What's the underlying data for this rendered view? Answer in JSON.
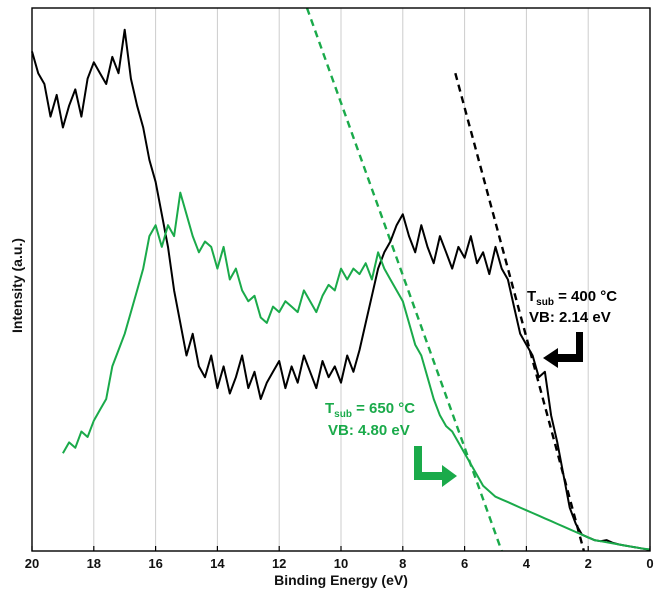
{
  "chart_data": {
    "type": "line",
    "title": "",
    "xlabel": "Binding Energy (eV)",
    "ylabel": "Intensity (a.u.)",
    "xlim": [
      20,
      0
    ],
    "xreversed": true,
    "ylim": [
      0,
      1
    ],
    "y_ticks_shown": false,
    "grid": "vertical",
    "x_ticks": [
      20,
      18,
      16,
      14,
      12,
      10,
      8,
      6,
      4,
      2,
      0
    ],
    "colors": {
      "black": "#000000",
      "green": "#1aaa4a",
      "grid": "#cccccc"
    },
    "series": [
      {
        "color": "#000000",
        "x": [
          20,
          19.8,
          19.6,
          19.4,
          19.2,
          19,
          18.8,
          18.6,
          18.4,
          18.2,
          18,
          17.8,
          17.6,
          17.4,
          17.2,
          17,
          16.8,
          16.6,
          16.4,
          16.2,
          16,
          15.8,
          15.6,
          15.4,
          15.2,
          15,
          14.8,
          14.6,
          14.4,
          14.2,
          14,
          13.8,
          13.6,
          13.4,
          13.2,
          13,
          12.8,
          12.6,
          12.4,
          12.2,
          12,
          11.8,
          11.6,
          11.4,
          11.2,
          11,
          10.8,
          10.6,
          10.4,
          10.2,
          10,
          9.8,
          9.6,
          9.4,
          9.2,
          9,
          8.8,
          8.6,
          8.4,
          8.2,
          8,
          7.8,
          7.6,
          7.4,
          7.2,
          7,
          6.8,
          6.6,
          6.4,
          6.2,
          6,
          5.8,
          5.6,
          5.4,
          5.2,
          5,
          4.8,
          4.6,
          4.4,
          4.2,
          4,
          3.8,
          3.6,
          3.4,
          3.2,
          3,
          2.8,
          2.6,
          2.4,
          2.2,
          2,
          1.8,
          1.6,
          1.4,
          1.2,
          1,
          0.8,
          0.6,
          0.4,
          0.2,
          0
        ],
        "y": [
          0.92,
          0.88,
          0.86,
          0.8,
          0.84,
          0.78,
          0.82,
          0.85,
          0.8,
          0.87,
          0.9,
          0.88,
          0.86,
          0.91,
          0.88,
          0.96,
          0.87,
          0.82,
          0.78,
          0.72,
          0.68,
          0.62,
          0.56,
          0.48,
          0.42,
          0.36,
          0.4,
          0.34,
          0.32,
          0.36,
          0.3,
          0.34,
          0.29,
          0.32,
          0.36,
          0.3,
          0.33,
          0.28,
          0.31,
          0.33,
          0.35,
          0.3,
          0.34,
          0.31,
          0.36,
          0.33,
          0.3,
          0.35,
          0.32,
          0.34,
          0.31,
          0.36,
          0.33,
          0.37,
          0.42,
          0.47,
          0.52,
          0.55,
          0.57,
          0.6,
          0.62,
          0.58,
          0.55,
          0.6,
          0.56,
          0.53,
          0.58,
          0.55,
          0.52,
          0.56,
          0.54,
          0.58,
          0.53,
          0.55,
          0.51,
          0.56,
          0.52,
          0.5,
          0.45,
          0.4,
          0.38,
          0.36,
          0.32,
          0.33,
          0.25,
          0.2,
          0.14,
          0.08,
          0.05,
          0.03,
          0.025,
          0.02,
          0.018,
          0.02,
          0.015,
          0.012,
          0.01,
          0.008,
          0.006,
          0.004,
          0.002
        ]
      },
      {
        "color": "#1aaa4a",
        "x": [
          19,
          18.8,
          18.6,
          18.4,
          18.2,
          18,
          17.8,
          17.6,
          17.4,
          17.2,
          17,
          16.8,
          16.6,
          16.4,
          16.2,
          16,
          15.8,
          15.6,
          15.4,
          15.2,
          15,
          14.8,
          14.6,
          14.4,
          14.2,
          14,
          13.8,
          13.6,
          13.4,
          13.2,
          13,
          12.8,
          12.6,
          12.4,
          12.2,
          12,
          11.8,
          11.6,
          11.4,
          11.2,
          11,
          10.8,
          10.6,
          10.4,
          10.2,
          10,
          9.8,
          9.6,
          9.4,
          9.2,
          9,
          8.8,
          8.6,
          8.4,
          8.2,
          8,
          7.8,
          7.6,
          7.4,
          7.2,
          7,
          6.8,
          6.6,
          6.4,
          6.2,
          6,
          5.8,
          5.6,
          5.4,
          5.2,
          5,
          4.8,
          4.6,
          4.4,
          4.2,
          4,
          3.8,
          3.6,
          3.4,
          3.2,
          3,
          2.8,
          2.6,
          2.4,
          2.2,
          2,
          1.8,
          1.6,
          1.4,
          1.2,
          1,
          0.8,
          0.6,
          0.4,
          0.2,
          0
        ],
        "y": [
          0.18,
          0.2,
          0.19,
          0.22,
          0.21,
          0.24,
          0.26,
          0.28,
          0.34,
          0.37,
          0.4,
          0.44,
          0.48,
          0.52,
          0.58,
          0.6,
          0.56,
          0.6,
          0.58,
          0.66,
          0.62,
          0.58,
          0.55,
          0.57,
          0.56,
          0.52,
          0.56,
          0.5,
          0.52,
          0.48,
          0.46,
          0.47,
          0.43,
          0.42,
          0.45,
          0.44,
          0.46,
          0.45,
          0.44,
          0.48,
          0.46,
          0.44,
          0.47,
          0.49,
          0.48,
          0.52,
          0.5,
          0.52,
          0.51,
          0.53,
          0.5,
          0.55,
          0.52,
          0.5,
          0.48,
          0.46,
          0.42,
          0.38,
          0.36,
          0.32,
          0.28,
          0.25,
          0.23,
          0.22,
          0.2,
          0.18,
          0.16,
          0.14,
          0.12,
          0.11,
          0.1,
          0.095,
          0.09,
          0.085,
          0.08,
          0.075,
          0.07,
          0.065,
          0.06,
          0.055,
          0.05,
          0.045,
          0.04,
          0.035,
          0.03,
          0.025,
          0.02,
          0.018,
          0.016,
          0.014,
          0.012,
          0.01,
          0.008,
          0.006,
          0.004,
          0.003
        ]
      }
    ],
    "fit_lines": [
      {
        "color": "#000000",
        "dashed": true,
        "x": [
          6.3,
          2.14
        ],
        "y": [
          0.88,
          0.0
        ]
      },
      {
        "color": "#1aaa4a",
        "dashed": true,
        "x": [
          11.1,
          4.8
        ],
        "y": [
          1.0,
          0.0
        ]
      }
    ],
    "annotations": [
      {
        "color": "#000000",
        "line1_prefix": "T",
        "line1_sub": "sub",
        "line1_suffix": " = 400 °C",
        "line2": "VB: 2.14 eV",
        "arrow": "left"
      },
      {
        "color": "#1aaa4a",
        "line1_prefix": "T",
        "line1_sub": "sub",
        "line1_suffix": " = 650 °C",
        "line2": "VB: 4.80 eV",
        "arrow": "right"
      }
    ]
  }
}
